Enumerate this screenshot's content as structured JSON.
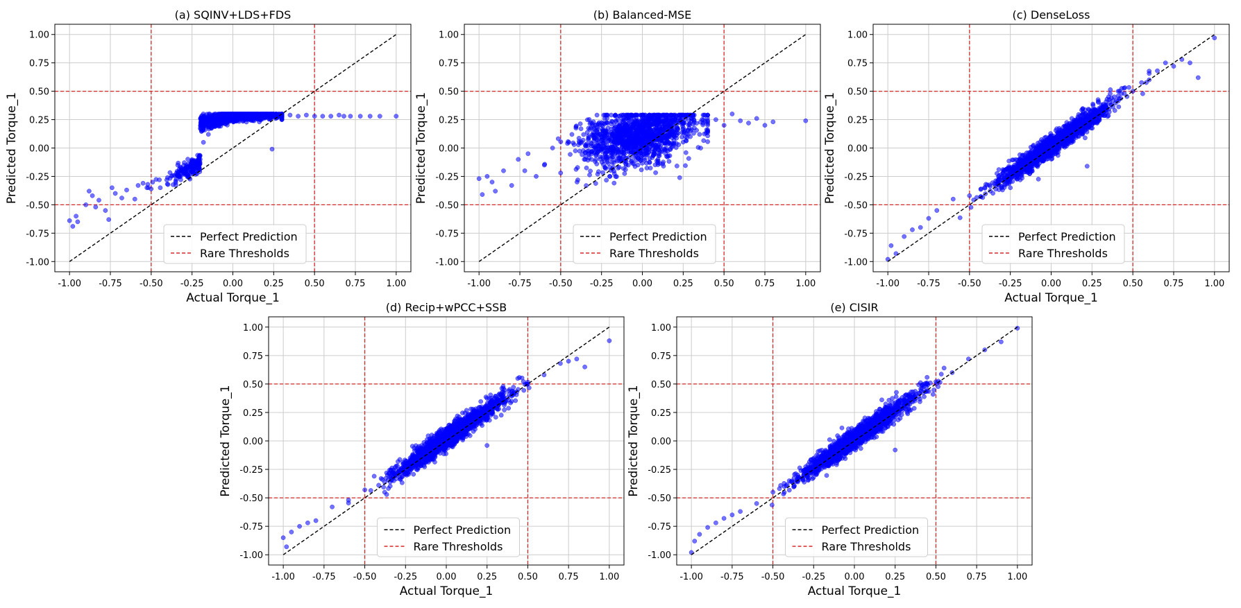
{
  "figure": {
    "background": "#ffffff",
    "colors": {
      "points": "#0000ff",
      "perfect_line": "#000000",
      "threshold": "#d62728",
      "grid": "#cccccc",
      "frame": "#000000"
    }
  },
  "chart_data": [
    {
      "type": "scatter",
      "id": "a",
      "title": "(a) SQINV+LDS+FDS",
      "xlabel": "Actual Torque_1",
      "ylabel": "Predicted Torque_1",
      "xlim": [
        -1.0,
        1.0
      ],
      "ylim": [
        -1.0,
        1.0
      ],
      "xticks": [
        "-1.00",
        "-0.75",
        "-0.50",
        "-0.25",
        "0.00",
        "0.25",
        "0.50",
        "0.75",
        "1.00"
      ],
      "yticks": [
        "-1.00",
        "-0.75",
        "-0.50",
        "-0.25",
        "0.00",
        "0.25",
        "0.50",
        "0.75",
        "1.00"
      ],
      "grid": true,
      "thresholds": {
        "x": [
          -0.5,
          0.5
        ],
        "y": [
          -0.5,
          0.5
        ]
      },
      "perfect_line": [
        [
          -1.0,
          -1.0
        ],
        [
          1.0,
          1.0
        ]
      ],
      "legend": {
        "position": "lower center",
        "entries": [
          "Perfect Prediction",
          "Rare Thresholds"
        ]
      },
      "pattern": "saturating",
      "series": [
        {
          "name": "predictions",
          "points": [
            [
              -1.0,
              -0.64
            ],
            [
              -0.98,
              -0.69
            ],
            [
              -0.96,
              -0.6
            ],
            [
              -0.95,
              -0.65
            ],
            [
              -0.9,
              -0.5
            ],
            [
              -0.88,
              -0.38
            ],
            [
              -0.86,
              -0.42
            ],
            [
              -0.84,
              -0.52
            ],
            [
              -0.82,
              -0.46
            ],
            [
              -0.78,
              -0.55
            ],
            [
              -0.76,
              -0.63
            ],
            [
              -0.74,
              -0.35
            ],
            [
              -0.72,
              -0.4
            ],
            [
              -0.68,
              -0.44
            ],
            [
              -0.65,
              -0.37
            ],
            [
              -0.6,
              -0.45
            ],
            [
              -0.58,
              -0.33
            ],
            [
              -0.55,
              -0.31
            ],
            [
              -0.5,
              -0.36
            ],
            [
              -0.45,
              -0.28
            ],
            [
              -0.4,
              -0.26
            ],
            [
              -0.35,
              -0.29
            ],
            [
              -0.3,
              -0.22
            ],
            [
              -0.25,
              -0.17
            ],
            [
              -0.2,
              -0.1
            ],
            [
              -0.18,
              0.05
            ],
            [
              -0.15,
              0.12
            ],
            [
              -0.12,
              0.2
            ],
            [
              -0.1,
              0.25
            ],
            [
              -0.05,
              0.27
            ],
            [
              0.0,
              0.27
            ],
            [
              0.05,
              0.28
            ],
            [
              0.1,
              0.28
            ],
            [
              0.15,
              0.28
            ],
            [
              0.2,
              0.29
            ],
            [
              0.25,
              0.28
            ],
            [
              0.24,
              -0.01
            ],
            [
              0.3,
              0.28
            ],
            [
              0.35,
              0.29
            ],
            [
              0.4,
              0.28
            ],
            [
              0.45,
              0.29
            ],
            [
              0.5,
              0.28
            ],
            [
              0.55,
              0.28
            ],
            [
              0.6,
              0.28
            ],
            [
              0.65,
              0.29
            ],
            [
              0.68,
              0.28
            ],
            [
              0.72,
              0.28
            ],
            [
              0.78,
              0.28
            ],
            [
              0.84,
              0.28
            ],
            [
              0.9,
              0.28
            ],
            [
              1.0,
              0.28
            ]
          ]
        }
      ]
    },
    {
      "type": "scatter",
      "id": "b",
      "title": "(b) Balanced-MSE",
      "xlabel": "",
      "ylabel": "Predicted Torque_1",
      "xlim": [
        -1.0,
        1.0
      ],
      "ylim": [
        -1.0,
        1.0
      ],
      "xticks": [
        "-1.00",
        "-0.75",
        "-0.50",
        "-0.25",
        "0.00",
        "0.25",
        "0.50",
        "0.75",
        "1.00"
      ],
      "yticks": [
        "-1.00",
        "-0.75",
        "-0.50",
        "-0.25",
        "0.00",
        "0.25",
        "0.50",
        "0.75",
        "1.00"
      ],
      "grid": true,
      "thresholds": {
        "x": [
          -0.5,
          0.5
        ],
        "y": [
          -0.5,
          0.5
        ]
      },
      "perfect_line": [
        [
          -1.0,
          -1.0
        ],
        [
          1.0,
          1.0
        ]
      ],
      "legend": {
        "position": "lower center",
        "entries": [
          "Perfect Prediction",
          "Rare Thresholds"
        ]
      },
      "pattern": "diffuse",
      "series": [
        {
          "name": "predictions",
          "points": [
            [
              -1.0,
              -0.27
            ],
            [
              -0.98,
              -0.41
            ],
            [
              -0.95,
              -0.25
            ],
            [
              -0.92,
              -0.3
            ],
            [
              -0.9,
              -0.38
            ],
            [
              -0.85,
              -0.2
            ],
            [
              -0.8,
              -0.33
            ],
            [
              -0.76,
              -0.1
            ],
            [
              -0.72,
              -0.2
            ],
            [
              -0.7,
              -0.05
            ],
            [
              -0.65,
              -0.25
            ],
            [
              -0.6,
              -0.15
            ],
            [
              -0.55,
              0.0
            ],
            [
              -0.5,
              -0.22
            ],
            [
              -0.45,
              0.05
            ],
            [
              -0.4,
              -0.3
            ],
            [
              -0.35,
              -0.1
            ],
            [
              -0.3,
              0.1
            ],
            [
              -0.25,
              0.2
            ],
            [
              -0.2,
              -0.25
            ],
            [
              -0.15,
              0.25
            ],
            [
              -0.1,
              0.15
            ],
            [
              -0.05,
              0.22
            ],
            [
              0.0,
              0.27
            ],
            [
              0.05,
              0.2
            ],
            [
              0.1,
              0.28
            ],
            [
              0.15,
              0.1
            ],
            [
              0.2,
              0.25
            ],
            [
              0.25,
              0.22
            ],
            [
              0.3,
              0.26
            ],
            [
              0.35,
              0.12
            ],
            [
              0.4,
              0.23
            ],
            [
              0.45,
              0.25
            ],
            [
              0.5,
              0.2
            ],
            [
              0.55,
              0.3
            ],
            [
              0.6,
              0.24
            ],
            [
              0.65,
              0.22
            ],
            [
              0.7,
              0.26
            ],
            [
              0.75,
              0.2
            ],
            [
              0.8,
              0.23
            ],
            [
              1.0,
              0.24
            ]
          ]
        }
      ]
    },
    {
      "type": "scatter",
      "id": "c",
      "title": "(c) DenseLoss",
      "xlabel": "Actual Torque_1",
      "ylabel": "Predicted Torque_1",
      "xlim": [
        -1.0,
        1.0
      ],
      "ylim": [
        -1.0,
        1.0
      ],
      "xticks": [
        "-1.00",
        "-0.75",
        "-0.50",
        "-0.25",
        "0.00",
        "0.25",
        "0.50",
        "0.75",
        "1.00"
      ],
      "yticks": [
        "-1.00",
        "-0.75",
        "-0.50",
        "-0.25",
        "0.00",
        "0.25",
        "0.50",
        "0.75",
        "1.00"
      ],
      "grid": true,
      "thresholds": {
        "x": [
          -0.5,
          0.5
        ],
        "y": [
          -0.5,
          0.5
        ]
      },
      "perfect_line": [
        [
          -1.0,
          -1.0
        ],
        [
          1.0,
          1.0
        ]
      ],
      "legend": {
        "position": "lower center",
        "entries": [
          "Perfect Prediction",
          "Rare Thresholds"
        ]
      },
      "pattern": "tight",
      "series": [
        {
          "name": "predictions",
          "points": [
            [
              -1.0,
              -0.98
            ],
            [
              -0.98,
              -0.86
            ],
            [
              -0.95,
              -0.93
            ],
            [
              -0.9,
              -0.78
            ],
            [
              -0.85,
              -0.72
            ],
            [
              -0.8,
              -0.7
            ],
            [
              -0.75,
              -0.62
            ],
            [
              -0.7,
              -0.55
            ],
            [
              -0.6,
              -0.45
            ],
            [
              -0.5,
              -0.42
            ],
            [
              -0.4,
              -0.32
            ],
            [
              -0.3,
              -0.25
            ],
            [
              -0.2,
              -0.15
            ],
            [
              -0.1,
              -0.05
            ],
            [
              0.0,
              0.0
            ],
            [
              0.1,
              0.1
            ],
            [
              0.2,
              0.2
            ],
            [
              0.22,
              -0.16
            ],
            [
              0.3,
              0.3
            ],
            [
              0.4,
              0.42
            ],
            [
              0.5,
              0.5
            ],
            [
              0.6,
              0.6
            ],
            [
              0.65,
              0.68
            ],
            [
              0.7,
              0.75
            ],
            [
              0.75,
              0.72
            ],
            [
              0.8,
              0.78
            ],
            [
              0.85,
              0.75
            ],
            [
              0.9,
              0.62
            ],
            [
              1.0,
              0.97
            ]
          ]
        }
      ]
    },
    {
      "type": "scatter",
      "id": "d",
      "title": "(d) Recip+wPCC+SSB",
      "xlabel": "Actual Torque_1",
      "ylabel": "Predicted Torque_1",
      "xlim": [
        -1.0,
        1.0
      ],
      "ylim": [
        -1.0,
        1.0
      ],
      "xticks": [
        "-1.00",
        "-0.75",
        "-0.50",
        "-0.25",
        "0.00",
        "0.25",
        "0.50",
        "0.75",
        "1.00"
      ],
      "yticks": [
        "-1.00",
        "-0.75",
        "-0.50",
        "-0.25",
        "0.00",
        "0.25",
        "0.50",
        "0.75",
        "1.00"
      ],
      "grid": true,
      "thresholds": {
        "x": [
          -0.5,
          0.5
        ],
        "y": [
          -0.5,
          0.5
        ]
      },
      "perfect_line": [
        [
          -1.0,
          -1.0
        ],
        [
          1.0,
          1.0
        ]
      ],
      "legend": {
        "position": "lower center",
        "entries": [
          "Perfect Prediction",
          "Rare Thresholds"
        ]
      },
      "pattern": "tight",
      "series": [
        {
          "name": "predictions",
          "points": [
            [
              -1.0,
              -0.85
            ],
            [
              -0.98,
              -0.93
            ],
            [
              -0.95,
              -0.8
            ],
            [
              -0.9,
              -0.75
            ],
            [
              -0.85,
              -0.72
            ],
            [
              -0.8,
              -0.7
            ],
            [
              -0.7,
              -0.58
            ],
            [
              -0.6,
              -0.52
            ],
            [
              -0.5,
              -0.43
            ],
            [
              -0.4,
              -0.33
            ],
            [
              -0.3,
              -0.22
            ],
            [
              -0.2,
              -0.13
            ],
            [
              -0.1,
              -0.03
            ],
            [
              0.0,
              0.05
            ],
            [
              0.1,
              0.12
            ],
            [
              0.2,
              0.22
            ],
            [
              0.25,
              -0.04
            ],
            [
              0.3,
              0.3
            ],
            [
              0.4,
              0.4
            ],
            [
              0.5,
              0.5
            ],
            [
              0.6,
              0.58
            ],
            [
              0.7,
              0.68
            ],
            [
              0.75,
              0.7
            ],
            [
              0.8,
              0.72
            ],
            [
              0.85,
              0.65
            ],
            [
              1.0,
              0.88
            ]
          ]
        }
      ]
    },
    {
      "type": "scatter",
      "id": "e",
      "title": "(e) CISIR",
      "xlabel": "Actual Torque_1",
      "ylabel": "Predicted Torque_1",
      "xlim": [
        -1.0,
        1.0
      ],
      "ylim": [
        -1.0,
        1.0
      ],
      "xticks": [
        "-1.00",
        "-0.75",
        "-0.50",
        "-0.25",
        "0.00",
        "0.25",
        "0.50",
        "0.75",
        "1.00"
      ],
      "yticks": [
        "-1.00",
        "-0.75",
        "-0.50",
        "-0.25",
        "0.00",
        "0.25",
        "0.50",
        "0.75",
        "1.00"
      ],
      "grid": true,
      "thresholds": {
        "x": [
          -0.5,
          0.5
        ],
        "y": [
          -0.5,
          0.5
        ]
      },
      "perfect_line": [
        [
          -1.0,
          -1.0
        ],
        [
          1.0,
          1.0
        ]
      ],
      "legend": {
        "position": "lower center",
        "entries": [
          "Perfect Prediction",
          "Rare Thresholds"
        ]
      },
      "pattern": "tight",
      "series": [
        {
          "name": "predictions",
          "points": [
            [
              -1.0,
              -0.98
            ],
            [
              -0.98,
              -0.88
            ],
            [
              -0.95,
              -0.82
            ],
            [
              -0.9,
              -0.76
            ],
            [
              -0.85,
              -0.72
            ],
            [
              -0.8,
              -0.68
            ],
            [
              -0.75,
              -0.65
            ],
            [
              -0.7,
              -0.62
            ],
            [
              -0.6,
              -0.55
            ],
            [
              -0.5,
              -0.45
            ],
            [
              -0.4,
              -0.35
            ],
            [
              -0.3,
              -0.25
            ],
            [
              -0.2,
              -0.15
            ],
            [
              -0.1,
              -0.05
            ],
            [
              0.0,
              0.05
            ],
            [
              0.1,
              0.12
            ],
            [
              0.2,
              0.2
            ],
            [
              0.25,
              -0.08
            ],
            [
              0.3,
              0.3
            ],
            [
              0.4,
              0.42
            ],
            [
              0.5,
              0.52
            ],
            [
              0.55,
              0.64
            ],
            [
              0.6,
              0.6
            ],
            [
              0.7,
              0.72
            ],
            [
              0.8,
              0.8
            ],
            [
              0.9,
              0.87
            ],
            [
              1.0,
              0.99
            ]
          ]
        }
      ]
    }
  ]
}
